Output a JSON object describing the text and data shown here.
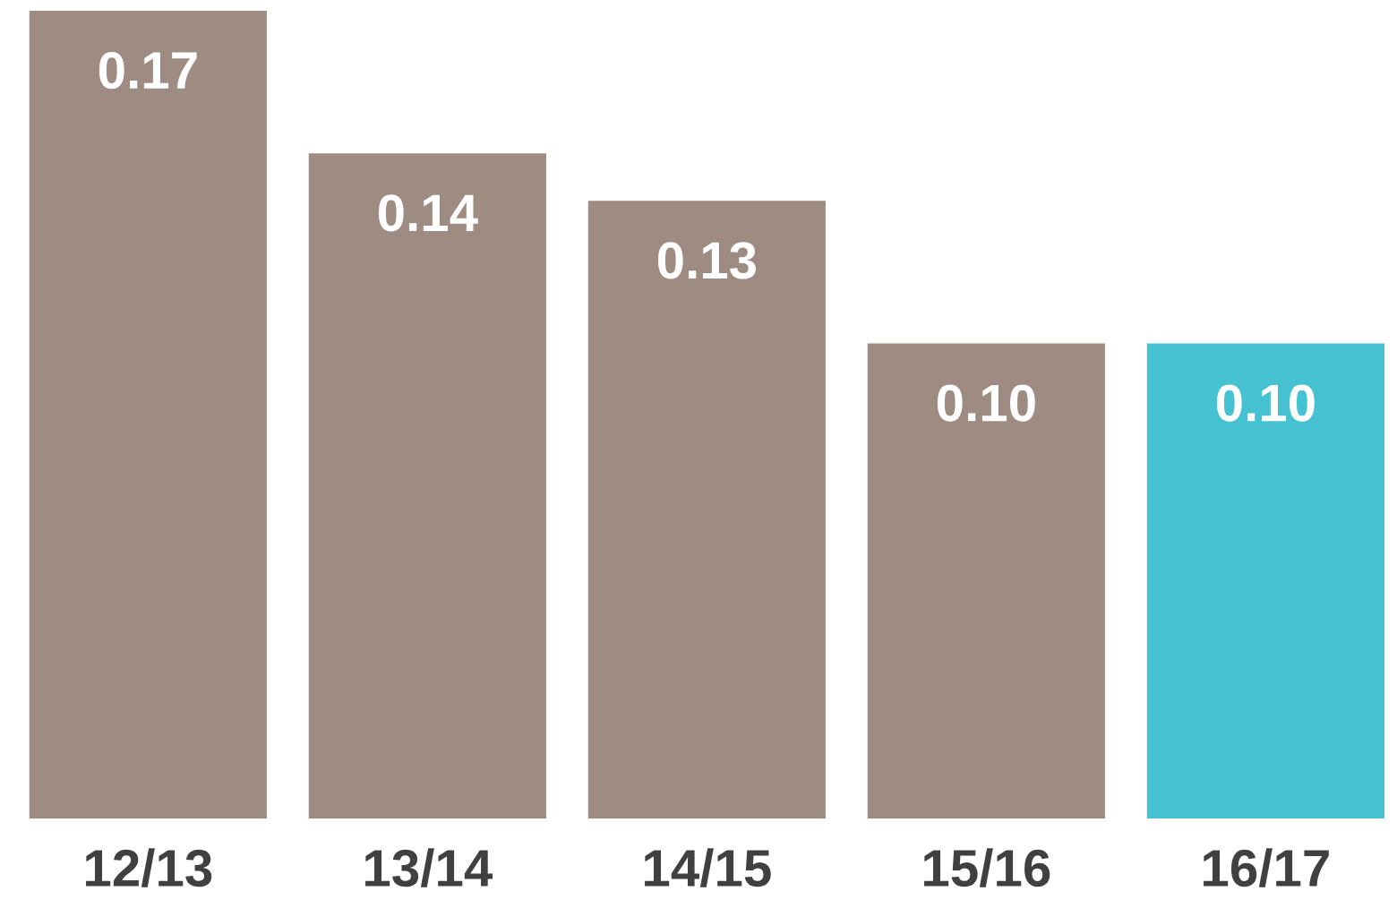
{
  "chart_data": {
    "type": "bar",
    "categories": [
      "12/13",
      "13/14",
      "14/15",
      "15/16",
      "16/17"
    ],
    "values": [
      0.17,
      0.14,
      0.13,
      0.1,
      0.1
    ],
    "colors": [
      "#9e8c82",
      "#9e8c82",
      "#9e8c82",
      "#9e8c82",
      "#45c1d1"
    ],
    "value_labels": [
      "0.17",
      "0.14",
      "0.13",
      "0.10",
      "0.10"
    ],
    "grid": false,
    "legend": false
  }
}
